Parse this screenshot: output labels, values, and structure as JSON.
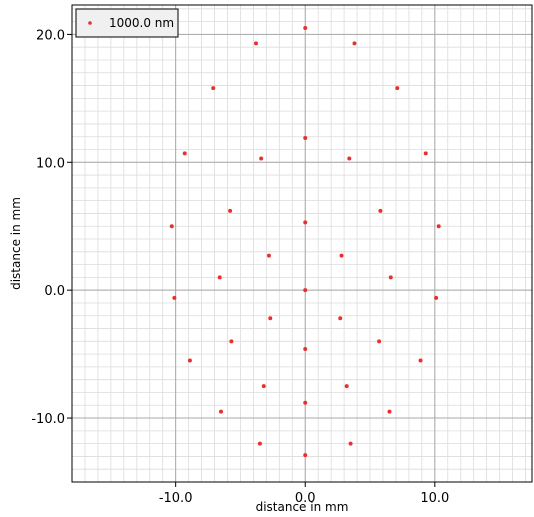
{
  "chart_data": {
    "type": "scatter",
    "title": "",
    "xlabel": "distance in mm",
    "ylabel": "distance in mm",
    "xlim": [
      -18.0,
      17.5
    ],
    "ylim": [
      -15.0,
      22.3
    ],
    "x_ticks": [
      {
        "value": -10.0,
        "label": "-10.0"
      },
      {
        "value": 0.0,
        "label": "0.0"
      },
      {
        "value": 10.0,
        "label": "10.0"
      }
    ],
    "y_ticks": [
      {
        "value": -10.0,
        "label": "-10.0"
      },
      {
        "value": 0.0,
        "label": "0.0"
      },
      {
        "value": 10.0,
        "label": "10.0"
      },
      {
        "value": 20.0,
        "label": "20.0"
      }
    ],
    "minor_step": 1.0,
    "grid": true,
    "legend_position": "top-left",
    "series": [
      {
        "name": "1000.0 nm",
        "color": "#e8312f",
        "points": [
          {
            "x": 0.0,
            "y": 20.5
          },
          {
            "x": -3.8,
            "y": 19.3
          },
          {
            "x": 3.8,
            "y": 19.3
          },
          {
            "x": -7.1,
            "y": 15.8
          },
          {
            "x": 7.1,
            "y": 15.8
          },
          {
            "x": 0.0,
            "y": 11.9
          },
          {
            "x": -9.3,
            "y": 10.7
          },
          {
            "x": -3.4,
            "y": 10.3
          },
          {
            "x": 3.4,
            "y": 10.3
          },
          {
            "x": 9.3,
            "y": 10.7
          },
          {
            "x": -5.8,
            "y": 6.2
          },
          {
            "x": 5.8,
            "y": 6.2
          },
          {
            "x": -10.3,
            "y": 5.0
          },
          {
            "x": 0.0,
            "y": 5.3
          },
          {
            "x": 10.3,
            "y": 5.0
          },
          {
            "x": -2.8,
            "y": 2.7
          },
          {
            "x": 2.8,
            "y": 2.7
          },
          {
            "x": -6.6,
            "y": 1.0
          },
          {
            "x": 6.6,
            "y": 1.0
          },
          {
            "x": -10.1,
            "y": -0.6
          },
          {
            "x": 0.0,
            "y": 0.0
          },
          {
            "x": 10.1,
            "y": -0.6
          },
          {
            "x": -2.7,
            "y": -2.2
          },
          {
            "x": 2.7,
            "y": -2.2
          },
          {
            "x": -5.7,
            "y": -4.0
          },
          {
            "x": 5.7,
            "y": -4.0
          },
          {
            "x": 0.0,
            "y": -4.6
          },
          {
            "x": -8.9,
            "y": -5.5
          },
          {
            "x": 8.9,
            "y": -5.5
          },
          {
            "x": -3.2,
            "y": -7.5
          },
          {
            "x": 3.2,
            "y": -7.5
          },
          {
            "x": 0.0,
            "y": -8.8
          },
          {
            "x": -6.5,
            "y": -9.5
          },
          {
            "x": 6.5,
            "y": -9.5
          },
          {
            "x": -3.5,
            "y": -12.0
          },
          {
            "x": 3.5,
            "y": -12.0
          },
          {
            "x": 0.0,
            "y": -12.9
          }
        ]
      }
    ]
  }
}
